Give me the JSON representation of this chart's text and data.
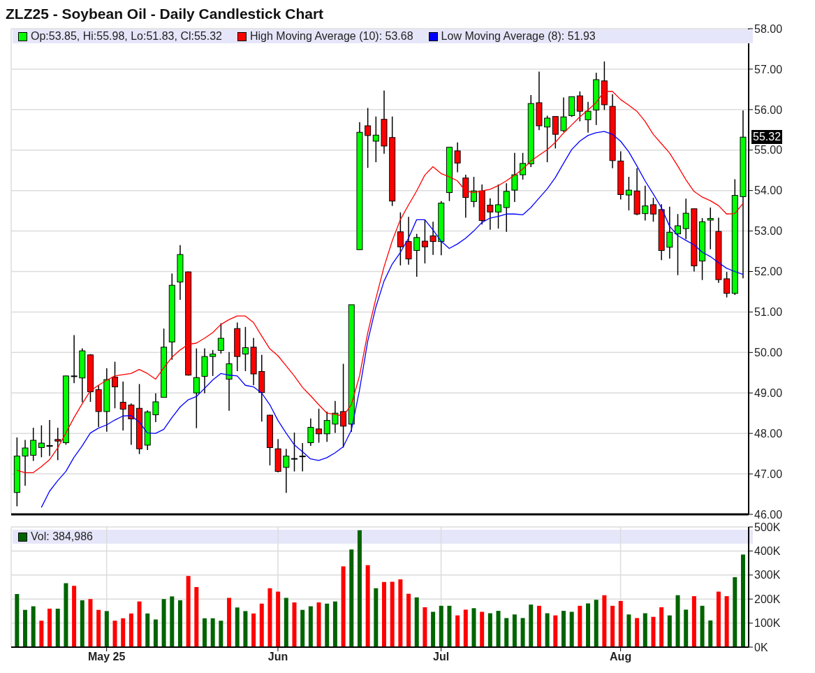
{
  "chart_data": [
    {
      "type": "candlestick",
      "title": "ZLZ25 - Soybean Oil - Daily Candlestick Chart",
      "categories": [
        null,
        null,
        null,
        null,
        null,
        null,
        null,
        null,
        null,
        null,
        null,
        null,
        null,
        null,
        null,
        null,
        null,
        null,
        null,
        null,
        null,
        null,
        null,
        null,
        null,
        null,
        null,
        null,
        null,
        null,
        null,
        null,
        null,
        null,
        null,
        null,
        null,
        null,
        null,
        null,
        null,
        null,
        null,
        null,
        null,
        null,
        null,
        null,
        null,
        null,
        null,
        null,
        null,
        null,
        null,
        null,
        null,
        null,
        null,
        null,
        null,
        null,
        null,
        null,
        null,
        null,
        null,
        null,
        null,
        null,
        null,
        null,
        null,
        null,
        null,
        null,
        null,
        null,
        null,
        null,
        null,
        null,
        null,
        null,
        null,
        null,
        null,
        null,
        null,
        null
      ],
      "series": [
        {
          "type": "candlestick",
          "name": "Op:53.85, Hi:55.98, Lo:51.83, Cl:55.32",
          "color": "#00ff00",
          "ohlc": [
            [
              46.54,
              47.9,
              46.2,
              47.44
            ],
            [
              47.44,
              47.84,
              46.71,
              47.64
            ],
            [
              47.46,
              48.14,
              47.32,
              47.83
            ],
            [
              47.65,
              48.2,
              47.41,
              47.76
            ],
            [
              47.7,
              48.33,
              47.44,
              47.68
            ],
            [
              47.85,
              48.14,
              47.34,
              47.81
            ],
            [
              47.77,
              49.43,
              47.72,
              49.42
            ],
            [
              49.42,
              50.43,
              49.24,
              49.42
            ],
            [
              49.37,
              50.1,
              48.77,
              50.04
            ],
            [
              49.94,
              49.96,
              48.78,
              49.03
            ],
            [
              49.08,
              49.19,
              48.16,
              48.54
            ],
            [
              48.54,
              49.61,
              48.04,
              49.33
            ],
            [
              49.39,
              49.77,
              48.62,
              49.15
            ],
            [
              48.77,
              49.28,
              48.07,
              48.6
            ],
            [
              48.7,
              48.74,
              47.72,
              48.36
            ],
            [
              48.62,
              49.22,
              47.49,
              47.62
            ],
            [
              47.71,
              48.57,
              47.59,
              48.53
            ],
            [
              48.46,
              48.99,
              48.28,
              48.78
            ],
            [
              48.89,
              50.59,
              48.89,
              50.13
            ],
            [
              50.26,
              51.95,
              49.82,
              51.66
            ],
            [
              51.74,
              52.65,
              51.3,
              52.42
            ],
            [
              51.99,
              52.0,
              49.43,
              49.44
            ],
            [
              49.0,
              50.1,
              48.13,
              49.38
            ],
            [
              49.41,
              50.1,
              48.99,
              49.9
            ],
            [
              49.9,
              50.06,
              49.42,
              49.96
            ],
            [
              50.05,
              50.72,
              49.97,
              50.35
            ],
            [
              49.34,
              50.01,
              48.56,
              49.72
            ],
            [
              50.59,
              50.74,
              49.54,
              49.9
            ],
            [
              49.96,
              50.63,
              49.54,
              50.12
            ],
            [
              50.13,
              50.36,
              49.19,
              49.47
            ],
            [
              49.53,
              49.94,
              48.29,
              49.01
            ],
            [
              48.45,
              48.46,
              47.21,
              47.65
            ],
            [
              47.62,
              47.86,
              47.04,
              47.06
            ],
            [
              47.16,
              47.62,
              46.53,
              47.44
            ],
            [
              47.38,
              48.02,
              47.06,
              47.37
            ],
            [
              47.44,
              47.76,
              47.06,
              47.43
            ],
            [
              47.77,
              48.37,
              47.69,
              48.15
            ],
            [
              48.11,
              48.61,
              47.77,
              47.99
            ],
            [
              47.99,
              48.54,
              47.79,
              48.32
            ],
            [
              48.23,
              48.8,
              48.01,
              48.5
            ],
            [
              48.54,
              49.72,
              47.65,
              48.18
            ],
            [
              48.23,
              51.18,
              48.04,
              51.18
            ],
            [
              52.54,
              55.69,
              52.54,
              55.44
            ],
            [
              55.6,
              56.04,
              54.56,
              55.36
            ],
            [
              55.22,
              55.83,
              54.7,
              55.37
            ],
            [
              55.76,
              56.47,
              54.91,
              55.1
            ],
            [
              55.31,
              55.83,
              53.62,
              53.74
            ],
            [
              52.98,
              53.46,
              52.15,
              52.61
            ],
            [
              52.74,
              53.35,
              52.17,
              52.31
            ],
            [
              52.52,
              52.93,
              51.87,
              52.84
            ],
            [
              52.75,
              53.28,
              52.2,
              52.61
            ],
            [
              52.88,
              53.23,
              52.41,
              52.74
            ],
            [
              52.74,
              53.74,
              52.4,
              53.69
            ],
            [
              53.95,
              55.07,
              53.74,
              55.07
            ],
            [
              54.98,
              55.19,
              54.45,
              54.68
            ],
            [
              54.31,
              54.39,
              53.33,
              53.83
            ],
            [
              53.73,
              54.34,
              53.59,
              53.99
            ],
            [
              53.99,
              54.15,
              53.16,
              53.26
            ],
            [
              53.64,
              53.81,
              53.03,
              53.47
            ],
            [
              53.47,
              54.15,
              53.06,
              53.65
            ],
            [
              53.58,
              54.18,
              52.98,
              53.98
            ],
            [
              54.01,
              54.93,
              53.72,
              54.39
            ],
            [
              54.39,
              54.93,
              54.27,
              54.67
            ],
            [
              54.66,
              56.36,
              54.58,
              56.15
            ],
            [
              56.17,
              56.94,
              55.49,
              55.6
            ],
            [
              55.57,
              55.85,
              54.7,
              55.79
            ],
            [
              55.83,
              55.83,
              55.04,
              55.39
            ],
            [
              55.48,
              56.3,
              55.45,
              55.82
            ],
            [
              55.85,
              56.32,
              55.82,
              56.32
            ],
            [
              56.34,
              56.45,
              55.71,
              55.96
            ],
            [
              55.75,
              56.19,
              55.43,
              55.96
            ],
            [
              55.99,
              56.91,
              55.62,
              56.74
            ],
            [
              56.71,
              57.19,
              55.99,
              56.12
            ],
            [
              56.08,
              56.38,
              54.55,
              54.74
            ],
            [
              54.73,
              54.97,
              53.78,
              53.9
            ],
            [
              53.89,
              54.34,
              53.51,
              54.01
            ],
            [
              53.99,
              54.55,
              53.39,
              53.42
            ],
            [
              53.43,
              54.12,
              53.26,
              53.62
            ],
            [
              53.65,
              53.82,
              53.23,
              53.42
            ],
            [
              53.53,
              53.66,
              52.28,
              52.52
            ],
            [
              52.6,
              53.6,
              52.32,
              52.97
            ],
            [
              52.93,
              53.42,
              51.91,
              53.13
            ],
            [
              53.06,
              53.8,
              52.8,
              53.44
            ],
            [
              53.55,
              53.55,
              52.0,
              52.14
            ],
            [
              52.26,
              53.32,
              51.79,
              53.23
            ],
            [
              53.27,
              53.58,
              52.55,
              53.31
            ],
            [
              52.99,
              53.33,
              51.72,
              51.8
            ],
            [
              51.82,
              51.99,
              51.36,
              51.46
            ],
            [
              51.46,
              54.28,
              51.42,
              53.88
            ],
            [
              53.85,
              55.98,
              51.83,
              55.32
            ]
          ],
          "colors": [
            "#00ff00",
            "#00ff00",
            "#00ff00",
            "#00ff00",
            "#000000",
            "#ff0000",
            "#00ff00",
            "#000000",
            "#00ff00",
            "#ff0000",
            "#ff0000",
            "#00ff00",
            "#ff0000",
            "#ff0000",
            "#ff0000",
            "#ff0000",
            "#00ff00",
            "#00ff00",
            "#00ff00",
            "#00ff00",
            "#00ff00",
            "#ff0000",
            "#00ff00",
            "#00ff00",
            "#00ff00",
            "#00ff00",
            "#00ff00",
            "#ff0000",
            "#00ff00",
            "#ff0000",
            "#ff0000",
            "#ff0000",
            "#ff0000",
            "#00ff00",
            "#000000",
            "#000000",
            "#00ff00",
            "#ff0000",
            "#00ff00",
            "#00ff00",
            "#ff0000",
            "#00ff00",
            "#00ff00",
            "#ff0000",
            "#00ff00",
            "#ff0000",
            "#ff0000",
            "#ff0000",
            "#ff0000",
            "#00ff00",
            "#ff0000",
            "#ff0000",
            "#00ff00",
            "#00ff00",
            "#ff0000",
            "#ff0000",
            "#00ff00",
            "#ff0000",
            "#ff0000",
            "#00ff00",
            "#00ff00",
            "#00ff00",
            "#00ff00",
            "#00ff00",
            "#ff0000",
            "#00ff00",
            "#ff0000",
            "#00ff00",
            "#00ff00",
            "#ff0000",
            "#00ff00",
            "#00ff00",
            "#ff0000",
            "#ff0000",
            "#ff0000",
            "#00ff00",
            "#ff0000",
            "#00ff00",
            "#ff0000",
            "#ff0000",
            "#00ff00",
            "#00ff00",
            "#00ff00",
            "#ff0000",
            "#00ff00",
            "#00ff00",
            "#ff0000",
            "#ff0000",
            "#00ff00",
            "#00ff00"
          ]
        },
        {
          "type": "line",
          "name": "High Moving Average (10): 53.68",
          "color": "#ff0000",
          "values": [
            47.09,
            47.03,
            47.03,
            47.18,
            47.35,
            47.64,
            48.01,
            48.39,
            48.73,
            49.05,
            49.19,
            49.31,
            49.42,
            49.45,
            49.48,
            49.58,
            49.48,
            49.34,
            49.62,
            49.88,
            50.06,
            50.2,
            50.23,
            50.35,
            50.49,
            50.69,
            50.81,
            50.9,
            50.9,
            50.74,
            50.41,
            50.09,
            49.92,
            49.67,
            49.42,
            49.14,
            48.93,
            48.71,
            48.5,
            48.47,
            48.43,
            48.71,
            49.42,
            50.48,
            51.33,
            52.11,
            52.75,
            53.28,
            53.64,
            53.99,
            54.38,
            54.59,
            54.42,
            54.34,
            54.24,
            53.99,
            53.95,
            53.99,
            54.03,
            54.12,
            54.24,
            54.38,
            54.53,
            54.73,
            54.87,
            55.01,
            55.19,
            55.42,
            55.62,
            55.82,
            55.99,
            56.17,
            56.45,
            56.45,
            56.25,
            56.11,
            55.96,
            55.71,
            55.39,
            55.16,
            54.93,
            54.61,
            54.27,
            53.98,
            53.84,
            53.75,
            53.63,
            53.42,
            53.43,
            53.68
          ]
        },
        {
          "type": "line",
          "name": "Low Moving Average (8): 51.93",
          "color": "#0000ff",
          "values": [
            null,
            null,
            null,
            46.17,
            46.57,
            46.83,
            47.06,
            47.41,
            47.69,
            48.01,
            48.13,
            48.21,
            48.33,
            48.43,
            48.44,
            48.28,
            48.01,
            48.0,
            48.1,
            48.39,
            48.65,
            48.83,
            48.91,
            49.11,
            49.32,
            49.48,
            49.44,
            49.42,
            49.19,
            49.15,
            49.0,
            48.71,
            48.32,
            48.01,
            47.72,
            47.55,
            47.37,
            47.33,
            47.4,
            47.52,
            47.67,
            48.08,
            49.07,
            50.27,
            51.12,
            51.76,
            52.18,
            52.47,
            52.82,
            53.28,
            53.28,
            53.03,
            52.75,
            52.57,
            52.68,
            52.82,
            53.0,
            53.21,
            53.32,
            53.36,
            53.42,
            53.42,
            53.4,
            53.58,
            53.81,
            54.04,
            54.32,
            54.67,
            55.01,
            55.22,
            55.36,
            55.43,
            55.46,
            55.39,
            55.22,
            54.96,
            54.61,
            54.24,
            53.92,
            53.58,
            53.12,
            52.89,
            52.77,
            52.66,
            52.48,
            52.37,
            52.22,
            52.08,
            52.0,
            51.93
          ]
        }
      ],
      "ylim": [
        46,
        58
      ],
      "yticks": [
        {
          "value": 46,
          "label": "46.00"
        },
        {
          "value": 47,
          "label": "47.00"
        },
        {
          "value": 48,
          "label": "48.00"
        },
        {
          "value": 49,
          "label": "49.00"
        },
        {
          "value": 50,
          "label": "50.00"
        },
        {
          "value": 51,
          "label": "51.00"
        },
        {
          "value": 52,
          "label": "52.00"
        },
        {
          "value": 53,
          "label": "53.00"
        },
        {
          "value": 54,
          "label": "54.00"
        },
        {
          "value": 55,
          "label": "55.00"
        },
        {
          "value": 56,
          "label": "56.00"
        },
        {
          "value": 57,
          "label": "57.00"
        },
        {
          "value": 58,
          "label": "58.00"
        }
      ],
      "annotations": [
        "55.32"
      ],
      "grid": true,
      "legend": "top",
      "tick_labels": "y"
    },
    {
      "type": "bar",
      "categories": [
        null,
        null,
        null,
        null,
        null,
        null,
        null,
        null,
        null,
        null,
        null,
        "May 25",
        null,
        null,
        null,
        null,
        null,
        null,
        null,
        null,
        null,
        null,
        null,
        null,
        null,
        null,
        null,
        null,
        null,
        null,
        null,
        null,
        "Jun",
        null,
        null,
        null,
        null,
        null,
        null,
        null,
        null,
        null,
        null,
        null,
        null,
        null,
        null,
        null,
        null,
        null,
        null,
        null,
        "Jul",
        null,
        null,
        null,
        null,
        null,
        null,
        null,
        null,
        null,
        null,
        null,
        null,
        null,
        null,
        null,
        null,
        null,
        null,
        null,
        null,
        null,
        "Aug",
        null,
        null,
        null,
        null,
        null,
        null,
        null,
        null,
        null,
        null,
        null,
        null,
        null,
        null,
        null
      ],
      "series": [
        {
          "name": "Vol: 384,986",
          "color": "#006400",
          "values": [
            221000,
            155000,
            170000,
            110000,
            160000,
            160000,
            266000,
            255000,
            195000,
            200000,
            155000,
            150000,
            110000,
            120000,
            140000,
            190000,
            140000,
            115000,
            200000,
            211000,
            195000,
            296000,
            250000,
            120000,
            120000,
            110000,
            205000,
            165000,
            150000,
            140000,
            181000,
            245000,
            231000,
            205000,
            186000,
            155000,
            170000,
            186000,
            181000,
            190000,
            336000,
            406000,
            486000,
            341000,
            245000,
            271000,
            272000,
            282000,
            222000,
            207000,
            166000,
            147000,
            172000,
            172000,
            132000,
            156000,
            162000,
            147000,
            141000,
            151000,
            121000,
            136000,
            121000,
            177000,
            172000,
            141000,
            132000,
            151000,
            147000,
            172000,
            182000,
            197000,
            216000,
            172000,
            192000,
            136000,
            121000,
            141000,
            126000,
            166000,
            132000,
            216000,
            156000,
            212000,
            172000,
            111000,
            231000,
            212000,
            291000,
            384986
          ],
          "colors": [
            "#006400",
            "#006400",
            "#006400",
            "#ff0000",
            "#ff0000",
            "#006400",
            "#006400",
            "#ff0000",
            "#006400",
            "#ff0000",
            "#ff0000",
            "#006400",
            "#ff0000",
            "#ff0000",
            "#ff0000",
            "#ff0000",
            "#006400",
            "#006400",
            "#006400",
            "#006400",
            "#006400",
            "#ff0000",
            "#ff0000",
            "#006400",
            "#006400",
            "#006400",
            "#ff0000",
            "#006400",
            "#006400",
            "#ff0000",
            "#ff0000",
            "#ff0000",
            "#ff0000",
            "#006400",
            "#ff0000",
            "#006400",
            "#006400",
            "#ff0000",
            "#006400",
            "#006400",
            "#ff0000",
            "#006400",
            "#006400",
            "#ff0000",
            "#006400",
            "#ff0000",
            "#ff0000",
            "#ff0000",
            "#ff0000",
            "#006400",
            "#ff0000",
            "#006400",
            "#006400",
            "#006400",
            "#ff0000",
            "#ff0000",
            "#006400",
            "#ff0000",
            "#006400",
            "#006400",
            "#006400",
            "#006400",
            "#006400",
            "#006400",
            "#ff0000",
            "#006400",
            "#ff0000",
            "#006400",
            "#006400",
            "#ff0000",
            "#006400",
            "#006400",
            "#ff0000",
            "#ff0000",
            "#ff0000",
            "#006400",
            "#ff0000",
            "#006400",
            "#ff0000",
            "#ff0000",
            "#006400",
            "#006400",
            "#006400",
            "#ff0000",
            "#006400",
            "#006400",
            "#ff0000",
            "#ff0000",
            "#006400",
            "#006400"
          ]
        }
      ],
      "ylim": [
        0,
        500000
      ],
      "yticks": [
        {
          "value": 0,
          "label": "0K"
        },
        {
          "value": 100000,
          "label": "100K"
        },
        {
          "value": 200000,
          "label": "200K"
        },
        {
          "value": 300000,
          "label": "300K"
        },
        {
          "value": 400000,
          "label": "400K"
        },
        {
          "value": 500000,
          "label": "500K"
        }
      ],
      "grid": true,
      "legend": "top left"
    }
  ]
}
